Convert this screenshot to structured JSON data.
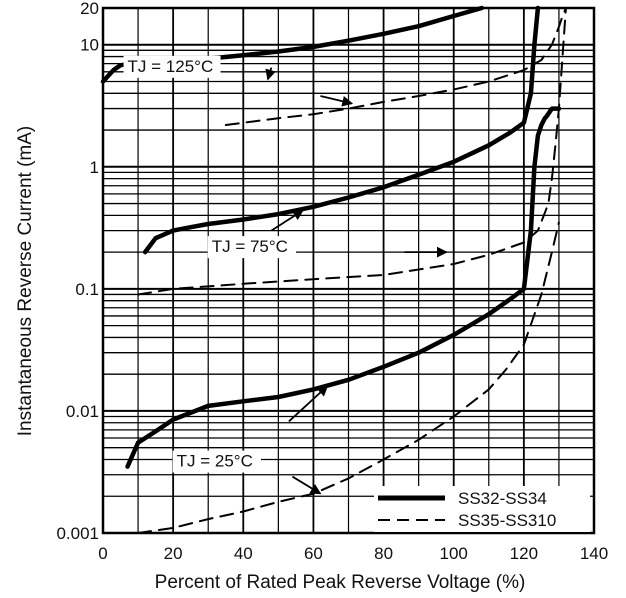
{
  "chart_data": {
    "type": "line",
    "title": "",
    "xlabel": "Percent of Rated Peak Reverse Voltage (%)",
    "ylabel": "Instantaneous  Reverse Current (mA)",
    "xlim": [
      0,
      140
    ],
    "ylim": [
      0.001,
      20
    ],
    "y_scale": "log",
    "grid": true,
    "x_ticks": [
      "0",
      "20",
      "40",
      "60",
      "80",
      "100",
      "120",
      "140"
    ],
    "y_ticks": [
      "0.001",
      "0.01",
      "0.1",
      "1",
      "10",
      "20"
    ],
    "legend": {
      "position": "bottom-right",
      "entries": [
        {
          "label": "SS32-SS34",
          "style": "solid"
        },
        {
          "label": "SS35-SS310",
          "style": "dashed"
        }
      ]
    },
    "annotations": [
      "TJ = 125°C",
      "TJ = 75°C",
      "TJ = 25°C"
    ],
    "series": [
      {
        "group": "SS32-SS34",
        "style": "solid",
        "temperature": "TJ = 125°C",
        "x": [
          0,
          3,
          5,
          10,
          20,
          30,
          40,
          50,
          60,
          70,
          80,
          90,
          100,
          108
        ],
        "y": [
          5,
          6.2,
          6.8,
          7.1,
          7.4,
          7.7,
          8.2,
          8.8,
          9.6,
          10.8,
          12.3,
          14.2,
          17.2,
          20
        ]
      },
      {
        "group": "SS35-SS310",
        "style": "dashed",
        "temperature": "TJ = 125°C",
        "x": [
          35,
          50,
          60,
          70,
          80,
          90,
          100,
          110,
          120,
          125,
          128,
          130,
          131,
          132
        ],
        "y": [
          2.2,
          2.5,
          2.7,
          3.0,
          3.4,
          3.8,
          4.3,
          5.0,
          6.2,
          7.5,
          10,
          14,
          17,
          20
        ]
      },
      {
        "group": "SS32-SS34",
        "style": "solid",
        "temperature": "TJ = 75°C",
        "x": [
          12,
          15,
          20,
          25,
          30,
          40,
          50,
          60,
          70,
          80,
          90,
          100,
          110,
          116,
          120,
          122,
          123,
          124
        ],
        "y": [
          0.2,
          0.26,
          0.3,
          0.32,
          0.34,
          0.37,
          0.41,
          0.47,
          0.56,
          0.68,
          0.86,
          1.1,
          1.5,
          1.9,
          2.3,
          4,
          10,
          20
        ]
      },
      {
        "group": "SS35-SS310",
        "style": "dashed",
        "temperature": "TJ = 75°C",
        "x": [
          10,
          20,
          40,
          60,
          80,
          100,
          110,
          120,
          124,
          127,
          128,
          129,
          130,
          132
        ],
        "y": [
          0.09,
          0.1,
          0.11,
          0.12,
          0.13,
          0.16,
          0.19,
          0.24,
          0.3,
          0.5,
          0.8,
          1.5,
          3,
          20
        ]
      },
      {
        "group": "SS32-SS34",
        "style": "solid",
        "temperature": "TJ = 25°C",
        "x": [
          7,
          10,
          15,
          20,
          30,
          40,
          50,
          60,
          70,
          80,
          90,
          100,
          110,
          116,
          120,
          122,
          123,
          124,
          125,
          126,
          126.5,
          128,
          130
        ],
        "y": [
          0.0035,
          0.0055,
          0.0068,
          0.0085,
          0.011,
          0.012,
          0.013,
          0.015,
          0.018,
          0.023,
          0.03,
          0.042,
          0.062,
          0.082,
          0.1,
          0.3,
          1,
          1.8,
          2.2,
          2.5,
          2.6,
          3,
          3
        ]
      },
      {
        "group": "SS35-SS310",
        "style": "dashed",
        "temperature": "TJ = 25°C",
        "x": [
          10,
          20,
          30,
          40,
          50,
          60,
          70,
          80,
          90,
          100,
          110,
          115,
          120,
          125,
          128,
          130
        ],
        "y": [
          0.001,
          0.0011,
          0.0013,
          0.0015,
          0.0018,
          0.0021,
          0.0028,
          0.004,
          0.0058,
          0.009,
          0.015,
          0.022,
          0.035,
          0.09,
          0.2,
          0.35
        ]
      }
    ]
  }
}
